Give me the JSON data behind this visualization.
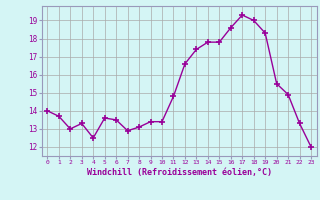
{
  "x": [
    0,
    1,
    2,
    3,
    4,
    5,
    6,
    7,
    8,
    9,
    10,
    11,
    12,
    13,
    14,
    15,
    16,
    17,
    18,
    19,
    20,
    21,
    22,
    23
  ],
  "y": [
    14.0,
    13.7,
    13.0,
    13.3,
    12.5,
    13.6,
    13.5,
    12.9,
    13.1,
    13.4,
    13.4,
    14.8,
    16.6,
    17.4,
    17.8,
    17.8,
    18.6,
    19.3,
    19.0,
    18.3,
    15.5,
    14.9,
    13.3,
    12.0
  ],
  "xlim": [
    -0.5,
    23.5
  ],
  "ylim": [
    11.5,
    19.8
  ],
  "yticks": [
    12,
    13,
    14,
    15,
    16,
    17,
    18,
    19
  ],
  "xticks": [
    0,
    1,
    2,
    3,
    4,
    5,
    6,
    7,
    8,
    9,
    10,
    11,
    12,
    13,
    14,
    15,
    16,
    17,
    18,
    19,
    20,
    21,
    22,
    23
  ],
  "xlabel": "Windchill (Refroidissement éolien,°C)",
  "line_color": "#990099",
  "marker": "+",
  "marker_size": 4,
  "bg_color": "#d4f5f5",
  "grid_color": "#aaaaaa",
  "axis_label_color": "#990099",
  "tick_label_color": "#990099",
  "spine_color": "#9999bb"
}
